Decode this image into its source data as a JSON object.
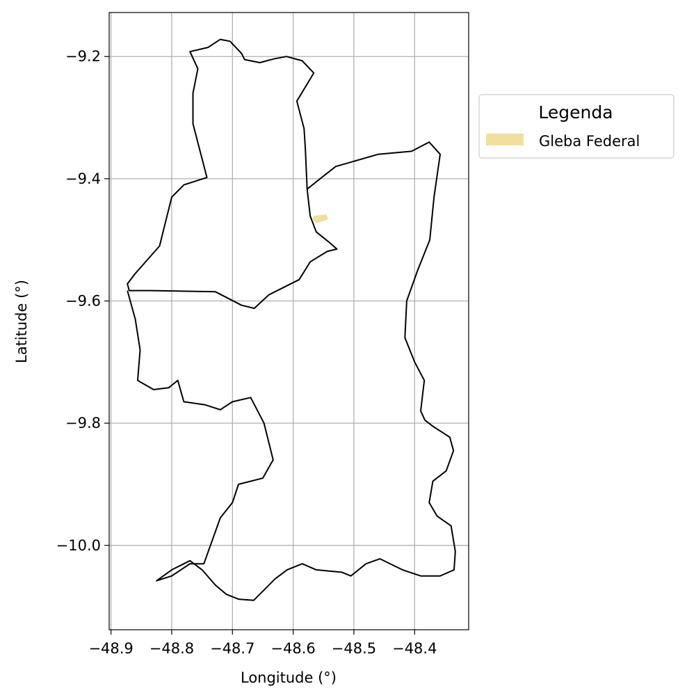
{
  "chart_data": {
    "type": "map",
    "xlabel": "Longitude (°)",
    "ylabel": "Latitude (°)",
    "x_ticks": [
      {
        "value": -48.9,
        "label": "−48.9"
      },
      {
        "value": -48.8,
        "label": "−48.8"
      },
      {
        "value": -48.7,
        "label": "−48.7"
      },
      {
        "value": -48.6,
        "label": "−48.6"
      },
      {
        "value": -48.5,
        "label": "−48.5"
      },
      {
        "value": -48.4,
        "label": "−48.4"
      }
    ],
    "y_ticks": [
      {
        "value": -9.2,
        "label": "−9.2"
      },
      {
        "value": -9.4,
        "label": "−9.4"
      },
      {
        "value": -9.6,
        "label": "−9.6"
      },
      {
        "value": -9.8,
        "label": "−9.8"
      },
      {
        "value": -10.0,
        "label": "−10.0"
      }
    ],
    "xlim": [
      -48.903,
      -48.311
    ],
    "ylim": [
      -10.138,
      -9.128
    ],
    "grid": true,
    "legend": {
      "title": "Legenda",
      "placement": "outside-right-top",
      "entries": [
        {
          "label": "Gleba Federal",
          "color": "#f0df9e"
        }
      ]
    },
    "boundaries": [
      {
        "name": "north-municipality-boundary",
        "coords": [
          [
            -48.704,
            -9.175
          ],
          [
            -48.72,
            -9.172
          ],
          [
            -48.74,
            -9.185
          ],
          [
            -48.77,
            -9.192
          ],
          [
            -48.757,
            -9.22
          ],
          [
            -48.765,
            -9.26
          ],
          [
            -48.765,
            -9.31
          ],
          [
            -48.752,
            -9.36
          ],
          [
            -48.742,
            -9.398
          ],
          [
            -48.78,
            -9.41
          ],
          [
            -48.8,
            -9.43
          ],
          [
            -48.81,
            -9.47
          ],
          [
            -48.82,
            -9.51
          ],
          [
            -48.86,
            -9.555
          ],
          [
            -48.873,
            -9.572
          ],
          [
            -48.87,
            -9.583
          ],
          [
            -48.835,
            -9.583
          ],
          [
            -48.778,
            -9.584
          ],
          [
            -48.728,
            -9.585
          ],
          [
            -48.685,
            -9.607
          ],
          [
            -48.664,
            -9.612
          ],
          [
            -48.64,
            -9.59
          ],
          [
            -48.59,
            -9.565
          ],
          [
            -48.572,
            -9.536
          ],
          [
            -48.544,
            -9.519
          ],
          [
            -48.528,
            -9.515
          ],
          [
            -48.542,
            -9.503
          ],
          [
            -48.562,
            -9.487
          ],
          [
            -48.572,
            -9.461
          ],
          [
            -48.577,
            -9.417
          ],
          [
            -48.58,
            -9.35
          ],
          [
            -48.582,
            -9.318
          ],
          [
            -48.594,
            -9.273
          ],
          [
            -48.566,
            -9.227
          ],
          [
            -48.585,
            -9.207
          ],
          [
            -48.611,
            -9.2
          ],
          [
            -48.632,
            -9.204
          ],
          [
            -48.655,
            -9.21
          ],
          [
            -48.68,
            -9.205
          ],
          [
            -48.685,
            -9.195
          ],
          [
            -48.704,
            -9.175
          ]
        ]
      },
      {
        "name": "south-municipality-boundary",
        "coords": [
          [
            -48.873,
            -9.583
          ],
          [
            -48.86,
            -9.63
          ],
          [
            -48.852,
            -9.68
          ],
          [
            -48.856,
            -9.73
          ],
          [
            -48.83,
            -9.745
          ],
          [
            -48.805,
            -9.742
          ],
          [
            -48.79,
            -9.73
          ],
          [
            -48.78,
            -9.765
          ],
          [
            -48.745,
            -9.77
          ],
          [
            -48.72,
            -9.778
          ],
          [
            -48.7,
            -9.765
          ],
          [
            -48.67,
            -9.758
          ],
          [
            -48.648,
            -9.8
          ],
          [
            -48.633,
            -9.86
          ],
          [
            -48.65,
            -9.89
          ],
          [
            -48.69,
            -9.9
          ],
          [
            -48.7,
            -9.93
          ],
          [
            -48.72,
            -9.955
          ],
          [
            -48.747,
            -10.03
          ],
          [
            -48.77,
            -10.03
          ],
          [
            -48.8,
            -10.05
          ],
          [
            -48.825,
            -10.058
          ],
          [
            -48.8,
            -10.04
          ],
          [
            -48.77,
            -10.025
          ],
          [
            -48.75,
            -10.04
          ],
          [
            -48.728,
            -10.065
          ],
          [
            -48.71,
            -10.08
          ],
          [
            -48.69,
            -10.088
          ],
          [
            -48.665,
            -10.09
          ],
          [
            -48.645,
            -10.07
          ],
          [
            -48.63,
            -10.055
          ],
          [
            -48.61,
            -10.04
          ],
          [
            -48.585,
            -10.03
          ],
          [
            -48.562,
            -10.04
          ],
          [
            -48.54,
            -10.042
          ],
          [
            -48.52,
            -10.044
          ],
          [
            -48.505,
            -10.05
          ],
          [
            -48.48,
            -10.03
          ],
          [
            -48.457,
            -10.022
          ],
          [
            -48.42,
            -10.04
          ],
          [
            -48.39,
            -10.05
          ],
          [
            -48.358,
            -10.05
          ],
          [
            -48.335,
            -10.04
          ],
          [
            -48.333,
            -10.01
          ],
          [
            -48.34,
            -9.968
          ],
          [
            -48.363,
            -9.952
          ],
          [
            -48.376,
            -9.93
          ],
          [
            -48.37,
            -9.895
          ],
          [
            -48.348,
            -9.878
          ],
          [
            -48.336,
            -9.845
          ],
          [
            -48.342,
            -9.823
          ],
          [
            -48.37,
            -9.805
          ],
          [
            -48.383,
            -9.795
          ],
          [
            -48.39,
            -9.78
          ],
          [
            -48.384,
            -9.73
          ],
          [
            -48.4,
            -9.7
          ],
          [
            -48.416,
            -9.66
          ],
          [
            -48.413,
            -9.6
          ],
          [
            -48.395,
            -9.55
          ],
          [
            -48.375,
            -9.5
          ],
          [
            -48.368,
            -9.43
          ],
          [
            -48.358,
            -9.36
          ],
          [
            -48.376,
            -9.34
          ],
          [
            -48.405,
            -9.355
          ],
          [
            -48.46,
            -9.36
          ],
          [
            -48.53,
            -9.38
          ],
          [
            -48.562,
            -9.405
          ],
          [
            -48.577,
            -9.417
          ]
        ]
      }
    ],
    "gleba_federal_polygon": [
      [
        -48.566,
        -9.461
      ],
      [
        -48.546,
        -9.459
      ],
      [
        -48.543,
        -9.466
      ],
      [
        -48.56,
        -9.472
      ],
      [
        -48.568,
        -9.468
      ],
      [
        -48.566,
        -9.461
      ]
    ]
  }
}
